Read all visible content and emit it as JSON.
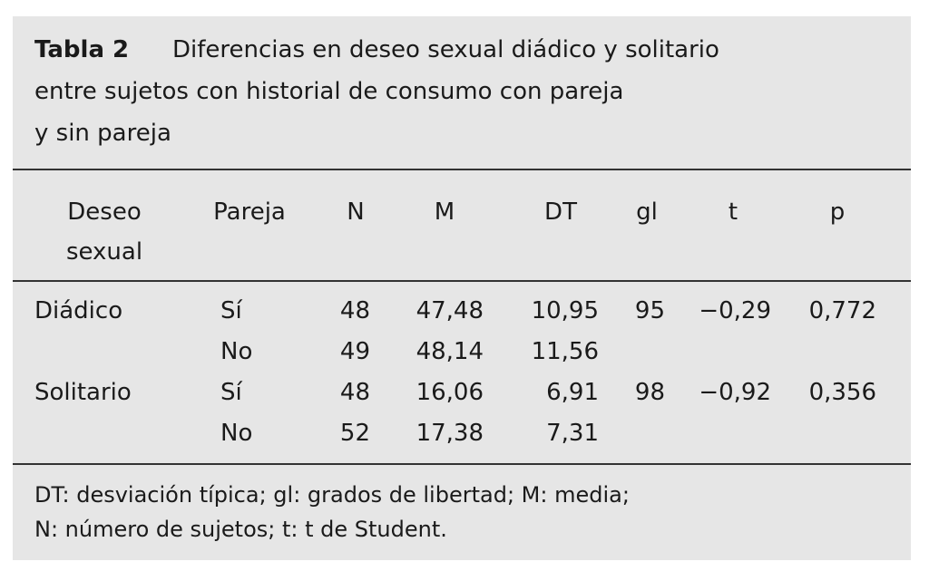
{
  "table_number": "Tabla 2",
  "title_lines": [
    "Diferencias en deseo sexual diádico y solitario",
    "entre sujetos con historial de consumo con pareja",
    "y sin pareja"
  ],
  "table": {
    "header": [
      "Deseo sexual",
      "Pareja",
      "N",
      "M",
      "DT",
      "gl",
      "t",
      "p"
    ],
    "rows": [
      [
        "Diádico",
        "Sí",
        "48",
        "47,48",
        "10,95",
        "95",
        "−0,29",
        "0,772"
      ],
      [
        null,
        "No",
        "49",
        "48,14",
        "11,56",
        null,
        null,
        null
      ],
      [
        "Solitario",
        "Sí",
        "48",
        "16,06",
        "6,91",
        "98",
        "−0,92",
        "0,356"
      ],
      [
        null,
        "No",
        "52",
        "17,38",
        "7,31",
        null,
        null,
        null
      ]
    ]
  },
  "footnote_lines": [
    "DT: desviación típica; gl: grados de libertad; M: media;",
    "N: número de sujetos; t: t de Student."
  ]
}
